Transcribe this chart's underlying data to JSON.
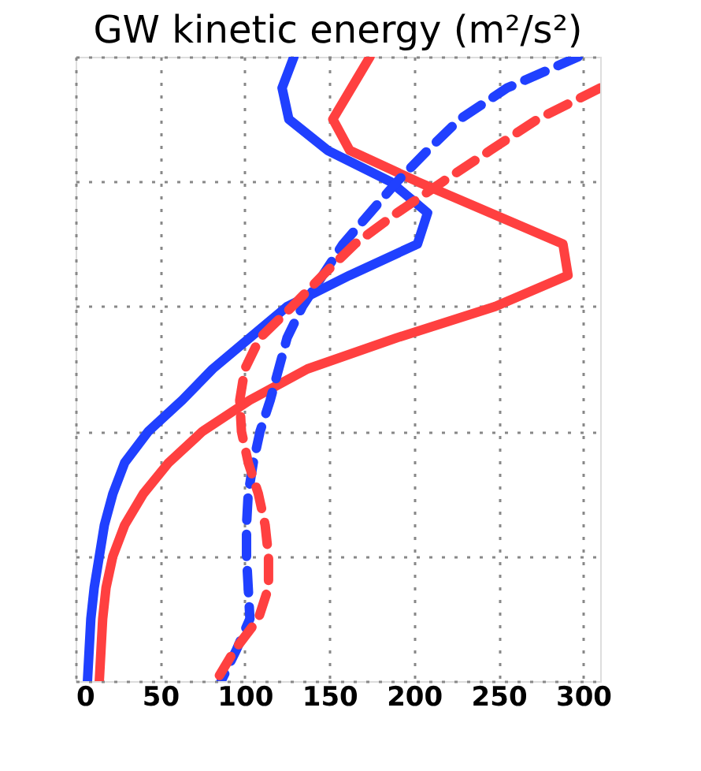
{
  "chart_data": {
    "type": "line",
    "orientation": "horizontal",
    "title": "GW kinetic energy (m²/s²)",
    "categories": [
      null,
      null,
      null,
      null,
      null,
      null,
      null,
      null,
      null,
      null,
      null,
      null,
      null,
      null,
      null,
      null,
      null,
      null,
      null,
      null,
      null
    ],
    "series": [
      {
        "color": "#2040ff",
        "line_style": "solid",
        "values": [
          129,
          122,
          126,
          149,
          186,
          208,
          202,
          162,
          125,
          103,
          81,
          63,
          43,
          29,
          22,
          17,
          14,
          11,
          9,
          8,
          7
        ]
      },
      {
        "color": "#ff4040",
        "line_style": "solid",
        "values": [
          174,
          163,
          152,
          162,
          202,
          245,
          288,
          291,
          248,
          190,
          137,
          103,
          75,
          55,
          40,
          29,
          22,
          18,
          16,
          15,
          14
        ]
      },
      {
        "color": "#2040ff",
        "line_style": "dashed",
        "values": [
          297,
          255,
          227,
          208,
          190,
          174,
          158,
          146,
          134,
          125,
          120,
          115,
          109,
          105,
          102,
          101,
          101,
          102,
          103,
          95,
          86
        ]
      },
      {
        "color": "#ff4040",
        "line_style": "dashed",
        "values": [
          null,
          310,
          273,
          245,
          217,
          190,
          165,
          146,
          128,
          109,
          100,
          97,
          98,
          102,
          108,
          112,
          114,
          114,
          108,
          94,
          83
        ]
      }
    ],
    "xlim": [
      0,
      310
    ],
    "xticks": [
      0,
      50,
      100,
      150,
      200,
      250,
      300
    ],
    "grid": true,
    "tick_labels": "x"
  }
}
